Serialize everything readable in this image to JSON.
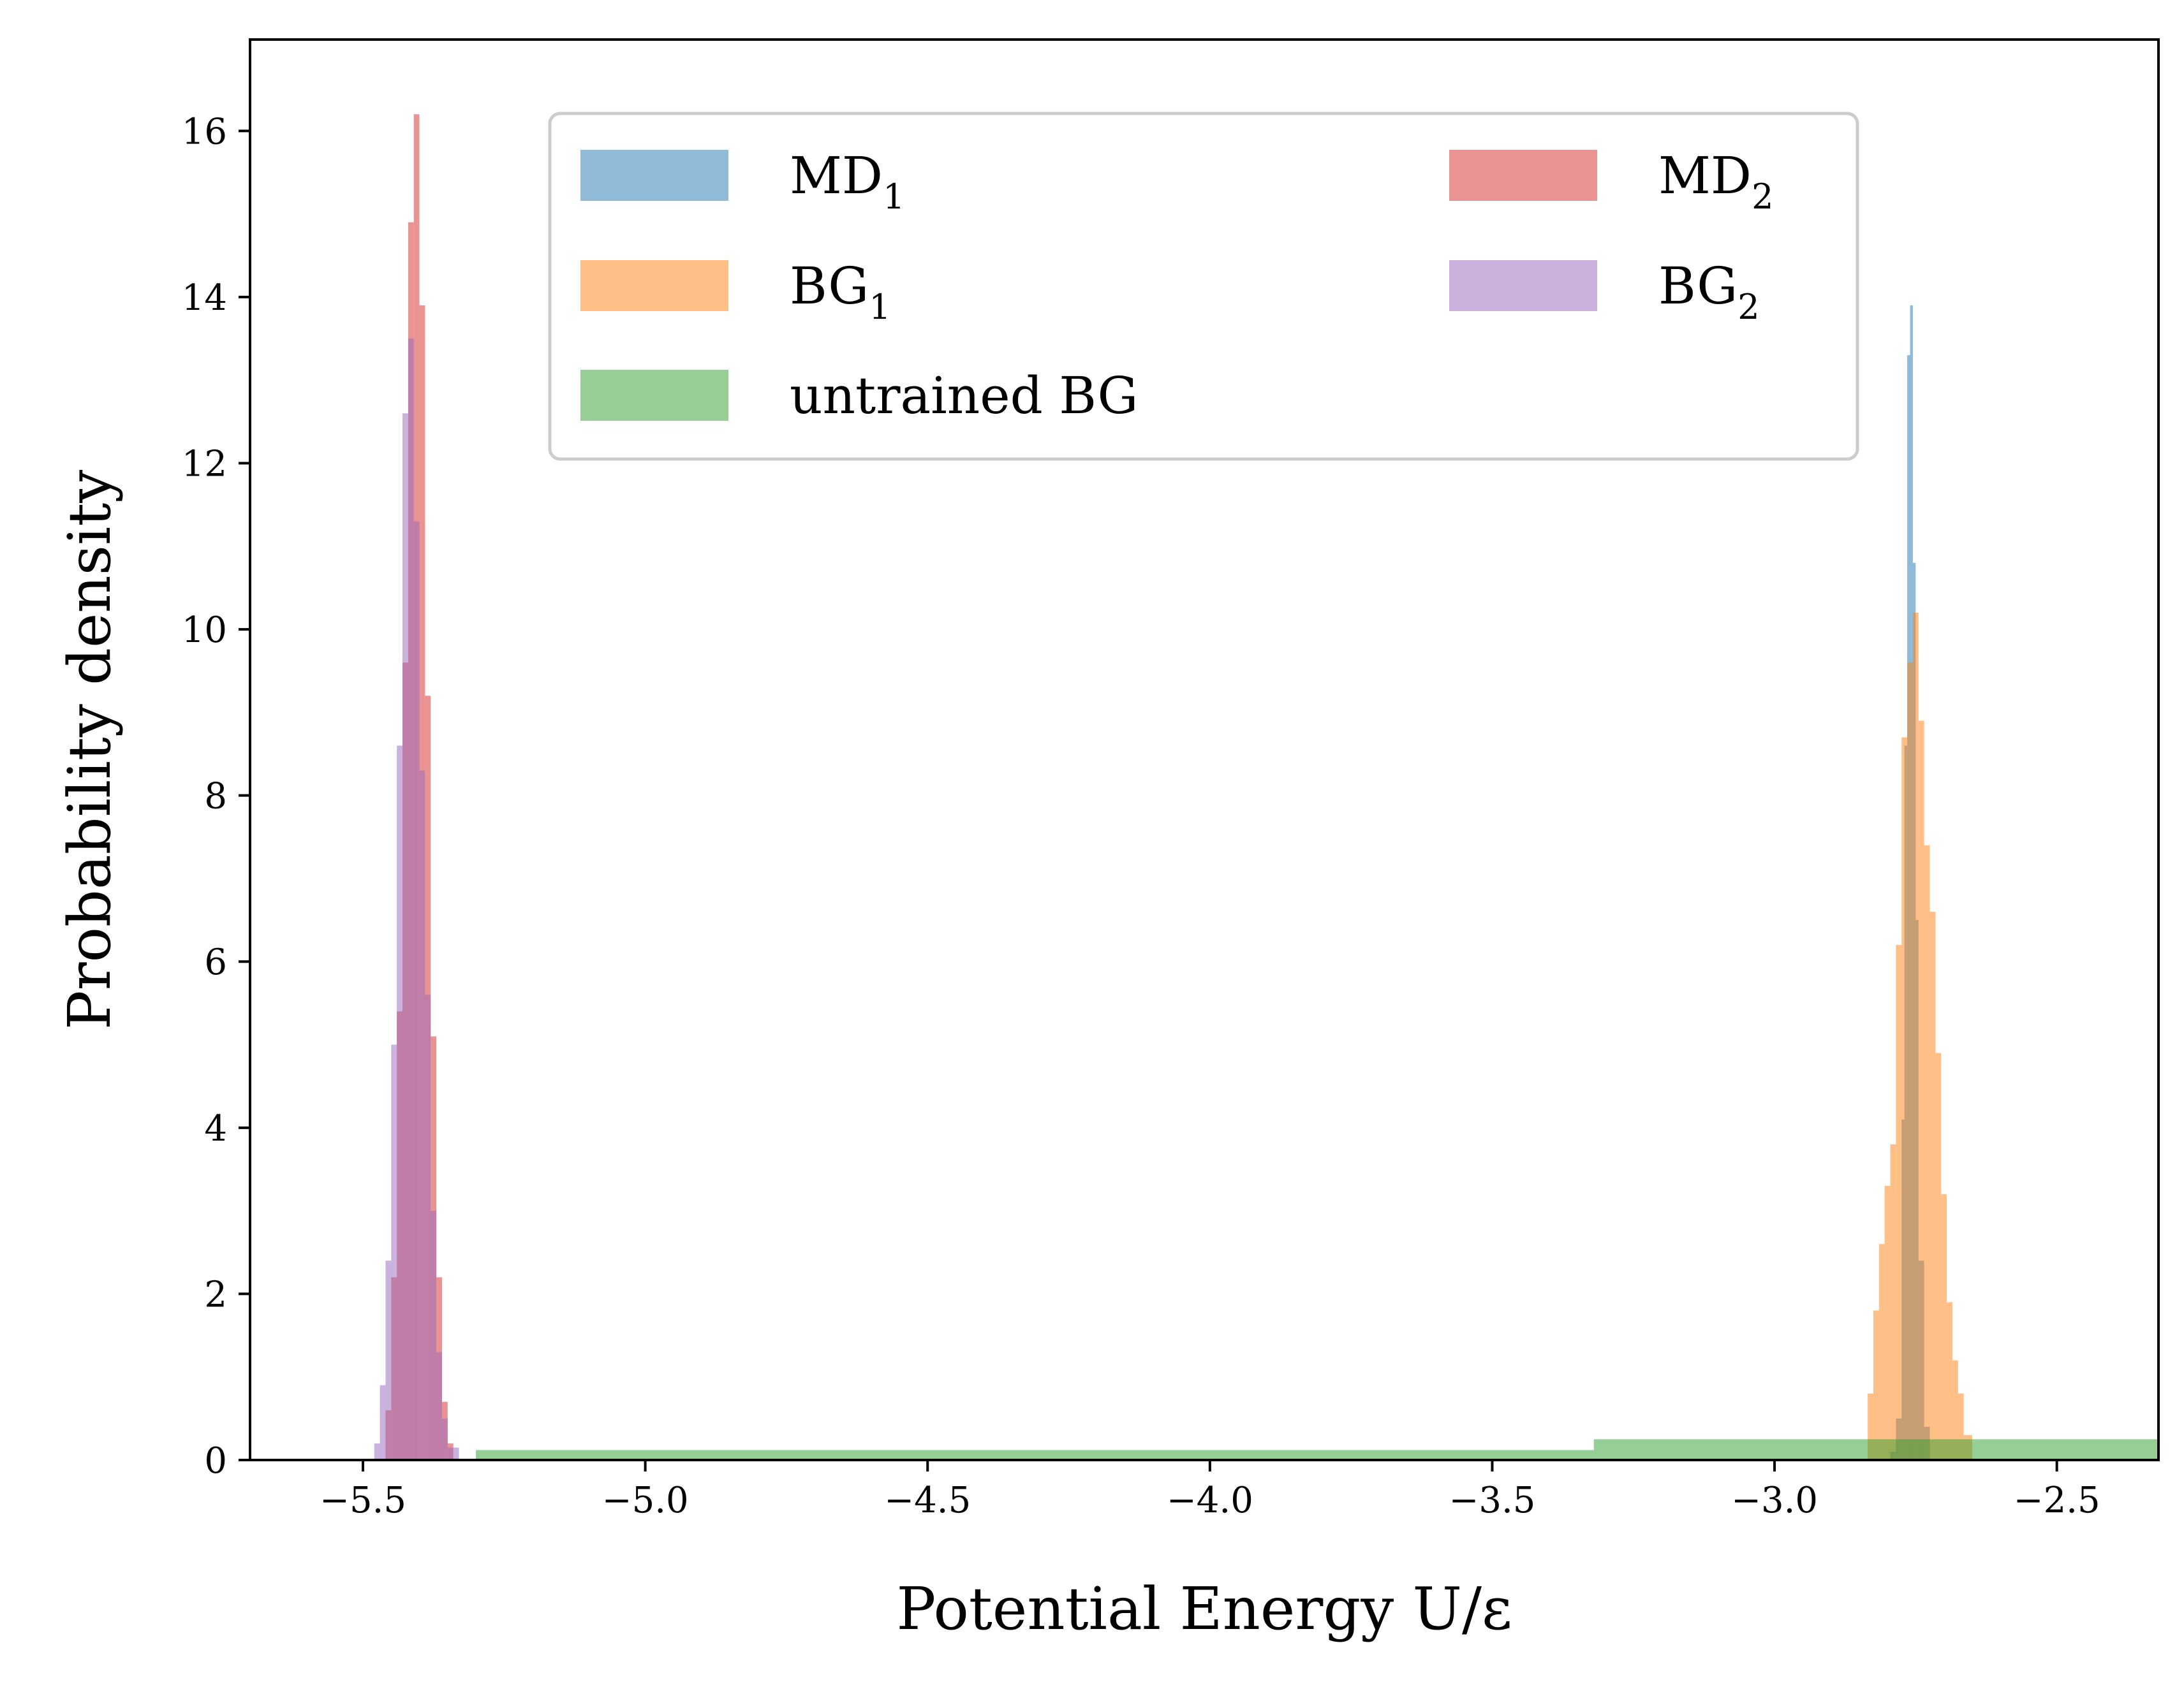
{
  "chart_data": {
    "type": "histogram",
    "title": "",
    "xlabel": "Potential Energy U/ε",
    "ylabel": "Probability density",
    "xlim": [
      -5.7,
      -2.32
    ],
    "ylim": [
      0,
      17.1
    ],
    "xticks": [
      -5.5,
      -5.0,
      -4.5,
      -4.0,
      -3.5,
      -3.0,
      -2.5
    ],
    "xtick_labels": [
      "−5.5",
      "−5.0",
      "−4.5",
      "−4.0",
      "−3.5",
      "−3.0",
      "−2.5"
    ],
    "yticks": [
      0,
      2,
      4,
      6,
      8,
      10,
      12,
      14,
      16
    ],
    "ytick_labels": [
      "0",
      "2",
      "4",
      "6",
      "8",
      "10",
      "12",
      "14",
      "16"
    ],
    "legend_position": "upper-center",
    "legend_columns": 2,
    "series": [
      {
        "name": "MD1",
        "label_main": "MD",
        "label_sub": "1",
        "color": "#1f77b4",
        "alpha": 0.5,
        "bins": [
          {
            "x0": -2.795,
            "x1": -2.785,
            "y": 0.1
          },
          {
            "x0": -2.785,
            "x1": -2.775,
            "y": 0.5
          },
          {
            "x0": -2.775,
            "x1": -2.77,
            "y": 4.1
          },
          {
            "x0": -2.77,
            "x1": -2.765,
            "y": 8.6
          },
          {
            "x0": -2.765,
            "x1": -2.76,
            "y": 13.3
          },
          {
            "x0": -2.76,
            "x1": -2.755,
            "y": 13.9
          },
          {
            "x0": -2.755,
            "x1": -2.75,
            "y": 10.8
          },
          {
            "x0": -2.75,
            "x1": -2.745,
            "y": 6.5
          },
          {
            "x0": -2.745,
            "x1": -2.735,
            "y": 2.4
          },
          {
            "x0": -2.735,
            "x1": -2.725,
            "y": 0.4
          }
        ]
      },
      {
        "name": "BG1",
        "label_main": "BG",
        "label_sub": "1",
        "color": "#ff7f0e",
        "alpha": 0.5,
        "bins": [
          {
            "x0": -2.835,
            "x1": -2.825,
            "y": 0.8
          },
          {
            "x0": -2.825,
            "x1": -2.815,
            "y": 1.8
          },
          {
            "x0": -2.815,
            "x1": -2.805,
            "y": 2.6
          },
          {
            "x0": -2.805,
            "x1": -2.795,
            "y": 3.3
          },
          {
            "x0": -2.795,
            "x1": -2.785,
            "y": 3.8
          },
          {
            "x0": -2.785,
            "x1": -2.775,
            "y": 6.2
          },
          {
            "x0": -2.775,
            "x1": -2.765,
            "y": 8.7
          },
          {
            "x0": -2.765,
            "x1": -2.755,
            "y": 9.6
          },
          {
            "x0": -2.755,
            "x1": -2.745,
            "y": 10.2
          },
          {
            "x0": -2.745,
            "x1": -2.735,
            "y": 8.9
          },
          {
            "x0": -2.735,
            "x1": -2.725,
            "y": 7.4
          },
          {
            "x0": -2.725,
            "x1": -2.715,
            "y": 6.6
          },
          {
            "x0": -2.715,
            "x1": -2.705,
            "y": 4.9
          },
          {
            "x0": -2.705,
            "x1": -2.695,
            "y": 3.2
          },
          {
            "x0": -2.695,
            "x1": -2.685,
            "y": 1.9
          },
          {
            "x0": -2.685,
            "x1": -2.675,
            "y": 1.2
          },
          {
            "x0": -2.675,
            "x1": -2.665,
            "y": 0.8
          },
          {
            "x0": -2.665,
            "x1": -2.65,
            "y": 0.3
          }
        ]
      },
      {
        "name": "untrained BG",
        "label_main": "untrained BG",
        "label_sub": "",
        "color": "#2ca02c",
        "alpha": 0.5,
        "bins": [
          {
            "x0": -5.3,
            "x1": -3.32,
            "y": 0.12
          },
          {
            "x0": -3.32,
            "x1": -2.32,
            "y": 0.25
          }
        ]
      },
      {
        "name": "MD2",
        "label_main": "MD",
        "label_sub": "2",
        "color": "#d62728",
        "alpha": 0.5,
        "bins": [
          {
            "x0": -5.46,
            "x1": -5.45,
            "y": 0.6
          },
          {
            "x0": -5.45,
            "x1": -5.44,
            "y": 2.2
          },
          {
            "x0": -5.44,
            "x1": -5.43,
            "y": 5.4
          },
          {
            "x0": -5.43,
            "x1": -5.42,
            "y": 9.6
          },
          {
            "x0": -5.42,
            "x1": -5.41,
            "y": 14.9
          },
          {
            "x0": -5.41,
            "x1": -5.4,
            "y": 16.2
          },
          {
            "x0": -5.4,
            "x1": -5.39,
            "y": 13.9
          },
          {
            "x0": -5.39,
            "x1": -5.38,
            "y": 9.2
          },
          {
            "x0": -5.38,
            "x1": -5.37,
            "y": 5.1
          },
          {
            "x0": -5.37,
            "x1": -5.36,
            "y": 2.2
          },
          {
            "x0": -5.36,
            "x1": -5.35,
            "y": 0.7
          },
          {
            "x0": -5.35,
            "x1": -5.34,
            "y": 0.2
          }
        ]
      },
      {
        "name": "BG2",
        "label_main": "BG",
        "label_sub": "2",
        "color": "#9467bd",
        "alpha": 0.5,
        "bins": [
          {
            "x0": -5.48,
            "x1": -5.47,
            "y": 0.2
          },
          {
            "x0": -5.47,
            "x1": -5.46,
            "y": 0.9
          },
          {
            "x0": -5.46,
            "x1": -5.45,
            "y": 2.4
          },
          {
            "x0": -5.45,
            "x1": -5.44,
            "y": 5.0
          },
          {
            "x0": -5.44,
            "x1": -5.43,
            "y": 8.6
          },
          {
            "x0": -5.43,
            "x1": -5.42,
            "y": 12.6
          },
          {
            "x0": -5.42,
            "x1": -5.41,
            "y": 13.5
          },
          {
            "x0": -5.41,
            "x1": -5.4,
            "y": 11.3
          },
          {
            "x0": -5.4,
            "x1": -5.39,
            "y": 8.3
          },
          {
            "x0": -5.39,
            "x1": -5.38,
            "y": 5.6
          },
          {
            "x0": -5.38,
            "x1": -5.37,
            "y": 3.0
          },
          {
            "x0": -5.37,
            "x1": -5.36,
            "y": 1.3
          },
          {
            "x0": -5.36,
            "x1": -5.35,
            "y": 0.5
          },
          {
            "x0": -5.35,
            "x1": -5.33,
            "y": 0.15
          }
        ]
      }
    ]
  }
}
